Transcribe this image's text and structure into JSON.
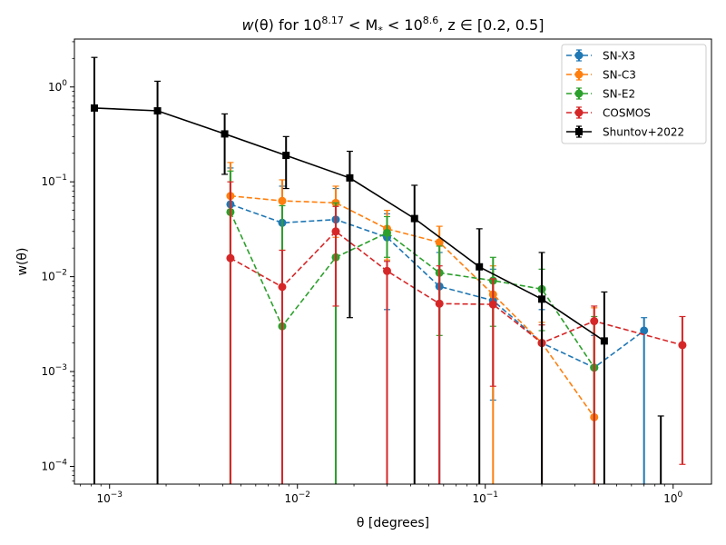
{
  "chart_data": {
    "type": "scatter",
    "title": "w(θ) for 10^8.17 < M* < 10^8.6, z ∈ [0.2, 0.5]",
    "title_parts": {
      "w": "w",
      "theta_paren": "(θ) for 10",
      "exp1": "8.17",
      "lt1": " < M",
      "star": "*",
      "lt2": " < 10",
      "exp2": "8.6",
      "tail": ", z ∈ [0.2, 0.5]"
    },
    "xlabel": "θ [degrees]",
    "ylabel": "w(θ)",
    "xscale": "log",
    "yscale": "log",
    "xlim": [
      0.00065,
      1.6
    ],
    "ylim": [
      6.5e-05,
      3.2
    ],
    "x_ticks": [
      {
        "value": 0.001,
        "base": "10",
        "exp": "−3"
      },
      {
        "value": 0.01,
        "base": "10",
        "exp": "−2"
      },
      {
        "value": 0.1,
        "base": "10",
        "exp": "−1"
      },
      {
        "value": 1,
        "base": "10",
        "exp": "0"
      }
    ],
    "y_ticks": [
      {
        "value": 0.0001,
        "base": "10",
        "exp": "−4"
      },
      {
        "value": 0.001,
        "base": "10",
        "exp": "−3"
      },
      {
        "value": 0.01,
        "base": "10",
        "exp": "−2"
      },
      {
        "value": 0.1,
        "base": "10",
        "exp": "−1"
      },
      {
        "value": 1,
        "base": "10",
        "exp": "0"
      }
    ],
    "legend_position": "top-right",
    "grid": false,
    "series": [
      {
        "name": "SN-X3",
        "color": "#1f77b4",
        "marker": "circle",
        "linestyle": "dashed",
        "points": [
          {
            "x": 0.0044,
            "y": 0.058,
            "lo": 1e-05,
            "hi": 0.14
          },
          {
            "x": 0.0083,
            "y": 0.037,
            "lo": 1e-05,
            "hi": 0.09
          },
          {
            "x": 0.016,
            "y": 0.04,
            "lo": 1e-05,
            "hi": 0.085
          },
          {
            "x": 0.03,
            "y": 0.026,
            "lo": 0.0045,
            "hi": 0.046
          },
          {
            "x": 0.057,
            "y": 0.0079,
            "lo": 1e-05,
            "hi": 0.018
          },
          {
            "x": 0.11,
            "y": 0.0056,
            "lo": 0.0005,
            "hi": 0.012
          },
          {
            "x": 0.2,
            "y": 0.002,
            "lo": 1e-05,
            "hi": 0.0045
          },
          {
            "x": 0.38,
            "y": 0.0011,
            "lo": 1e-05,
            "hi": 0.0024
          },
          {
            "x": 0.7,
            "y": 0.0027,
            "lo": 1e-05,
            "hi": 0.0037
          }
        ]
      },
      {
        "name": "SN-C3",
        "color": "#ff7f0e",
        "marker": "circle",
        "linestyle": "dashed",
        "points": [
          {
            "x": 0.0044,
            "y": 0.071,
            "lo": 1e-05,
            "hi": 0.16
          },
          {
            "x": 0.0083,
            "y": 0.063,
            "lo": 0.019,
            "hi": 0.105
          },
          {
            "x": 0.016,
            "y": 0.06,
            "lo": 0.026,
            "hi": 0.09
          },
          {
            "x": 0.03,
            "y": 0.032,
            "lo": 0.015,
            "hi": 0.05
          },
          {
            "x": 0.057,
            "y": 0.023,
            "lo": 0.011,
            "hi": 0.034
          },
          {
            "x": 0.11,
            "y": 0.0065,
            "lo": 1e-05,
            "hi": 0.013
          },
          {
            "x": 0.2,
            "y": 0.002,
            "lo": 1e-05,
            "hi": 0.0033
          },
          {
            "x": 0.38,
            "y": 0.00033,
            "lo": 1e-05,
            "hi": 0.0047
          }
        ]
      },
      {
        "name": "SN-E2",
        "color": "#2ca02c",
        "marker": "circle",
        "linestyle": "dashed",
        "points": [
          {
            "x": 0.0044,
            "y": 0.048,
            "lo": 1e-05,
            "hi": 0.13
          },
          {
            "x": 0.0083,
            "y": 0.003,
            "lo": 1e-05,
            "hi": 0.056
          },
          {
            "x": 0.016,
            "y": 0.016,
            "lo": 1e-05,
            "hi": 0.06
          },
          {
            "x": 0.03,
            "y": 0.029,
            "lo": 0.016,
            "hi": 0.043
          },
          {
            "x": 0.057,
            "y": 0.011,
            "lo": 0.0024,
            "hi": 0.021
          },
          {
            "x": 0.11,
            "y": 0.0091,
            "lo": 0.003,
            "hi": 0.016
          },
          {
            "x": 0.2,
            "y": 0.0074,
            "lo": 0.0027,
            "hi": 0.012
          },
          {
            "x": 0.38,
            "y": 0.0011,
            "lo": 1e-05,
            "hi": 0.0038
          }
        ]
      },
      {
        "name": "COSMOS",
        "color": "#d62728",
        "marker": "circle",
        "linestyle": "dashed",
        "points": [
          {
            "x": 0.0044,
            "y": 0.0157,
            "lo": 1e-05,
            "hi": 0.1
          },
          {
            "x": 0.0083,
            "y": 0.0078,
            "lo": 1e-05,
            "hi": 0.019
          },
          {
            "x": 0.016,
            "y": 0.03,
            "lo": 0.0049,
            "hi": 0.055
          },
          {
            "x": 0.03,
            "y": 0.0115,
            "lo": 1e-05,
            "hi": 0.0145
          },
          {
            "x": 0.057,
            "y": 0.0052,
            "lo": 1e-05,
            "hi": 0.013
          },
          {
            "x": 0.11,
            "y": 0.0051,
            "lo": 0.0007,
            "hi": 0.0095
          },
          {
            "x": 0.2,
            "y": 0.002,
            "lo": 1e-05,
            "hi": 0.0031
          },
          {
            "x": 0.38,
            "y": 0.0034,
            "lo": 1e-05,
            "hi": 0.0049
          },
          {
            "x": 1.12,
            "y": 0.0019,
            "lo": 0.000105,
            "hi": 0.0038
          }
        ]
      },
      {
        "name": "Shuntov+2022",
        "color": "#000000",
        "marker": "square",
        "linestyle": "solid",
        "points": [
          {
            "x": 0.00083,
            "y": 0.6,
            "lo": 1e-05,
            "hi": 2.05
          },
          {
            "x": 0.0018,
            "y": 0.56,
            "lo": 1e-05,
            "hi": 1.15
          },
          {
            "x": 0.0041,
            "y": 0.32,
            "lo": 0.12,
            "hi": 0.52
          },
          {
            "x": 0.0087,
            "y": 0.19,
            "lo": 0.085,
            "hi": 0.3
          },
          {
            "x": 0.019,
            "y": 0.11,
            "lo": 0.0037,
            "hi": 0.21
          },
          {
            "x": 0.042,
            "y": 0.041,
            "lo": 1e-05,
            "hi": 0.092
          },
          {
            "x": 0.093,
            "y": 0.0127,
            "lo": 1e-05,
            "hi": 0.032
          },
          {
            "x": 0.2,
            "y": 0.0058,
            "lo": 1e-05,
            "hi": 0.018
          },
          {
            "x": 0.43,
            "y": 0.0021,
            "lo": 1e-05,
            "hi": 0.0069
          },
          {
            "x": 0.86,
            "y": null,
            "lo": 1e-05,
            "hi": 0.00034
          }
        ]
      }
    ]
  }
}
